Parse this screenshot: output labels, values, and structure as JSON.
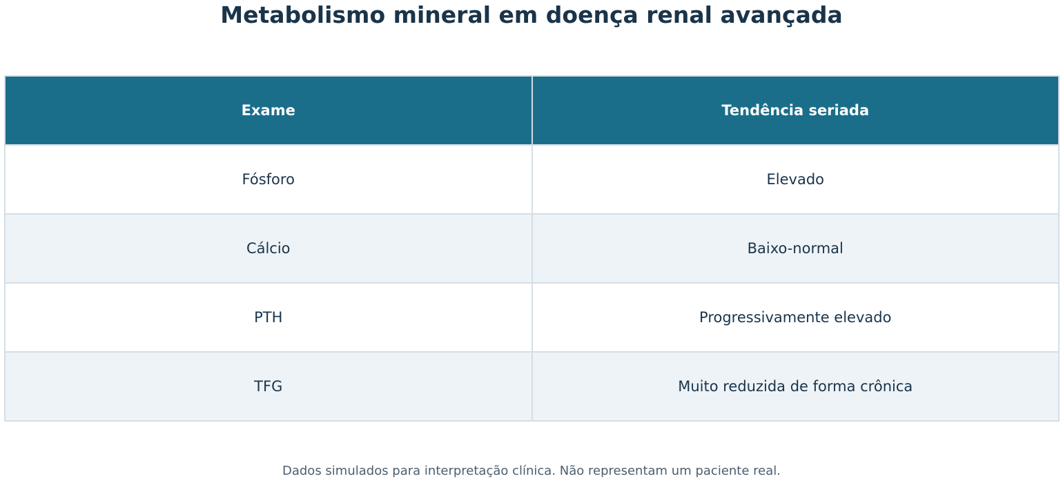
{
  "title": "Metabolismo mineral em doença renal avançada",
  "table": {
    "header": [
      "Exame",
      "Tendência seriada"
    ],
    "rows": [
      [
        "Fósforo",
        "Elevado"
      ],
      [
        "Cálcio",
        "Baixo-normal"
      ],
      [
        "PTH",
        "Progressivamente elevado"
      ],
      [
        "TFG",
        "Muito reduzida de forma crônica"
      ]
    ]
  },
  "footnote": "Dados simulados para interpretação clínica. Não representam um paciente real."
}
